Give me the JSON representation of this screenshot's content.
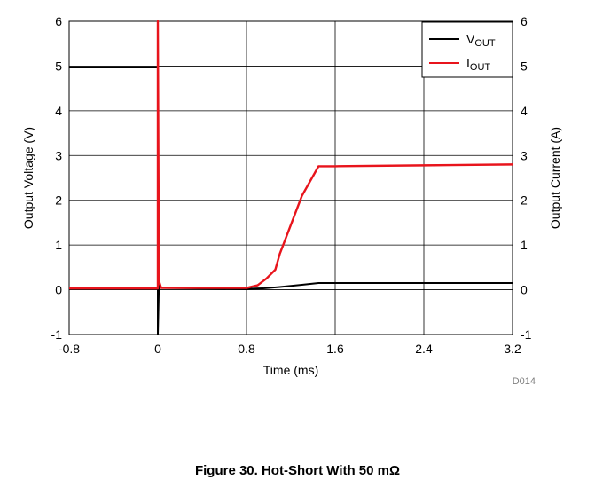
{
  "chart_data": {
    "type": "line",
    "xlabel": "Time (ms)",
    "ylabel": "Output Voltage (V)",
    "y2label": "Output Current (A)",
    "xlim": [
      -0.8,
      3.2
    ],
    "ylim": [
      -1,
      6
    ],
    "y2lim": [
      -1,
      6
    ],
    "x_ticks": [
      "-0.8",
      "0",
      "0.8",
      "1.6",
      "2.4",
      "3.2"
    ],
    "y_ticks": [
      "-1",
      "0",
      "1",
      "2",
      "3",
      "4",
      "5",
      "6"
    ],
    "y2_ticks": [
      "-1",
      "0",
      "1",
      "2",
      "3",
      "4",
      "5",
      "6"
    ],
    "grid": true,
    "legend_position": "top-right",
    "series": [
      {
        "name_main": "V",
        "name_sub": "OUT",
        "color": "#000000",
        "axis": "left",
        "x": [
          -0.8,
          -0.001,
          0.0,
          0.0,
          0.01,
          0.03,
          0.8,
          0.95,
          1.1,
          1.3,
          1.45,
          1.6,
          2.4,
          3.2
        ],
        "y": [
          4.97,
          4.97,
          4.97,
          -1.0,
          0.12,
          0.04,
          0.02,
          0.03,
          0.06,
          0.11,
          0.15,
          0.15,
          0.15,
          0.15
        ]
      },
      {
        "name_main": "I",
        "name_sub": "OUT",
        "color": "#e8141c",
        "axis": "right",
        "x": [
          -0.8,
          -0.001,
          0.0,
          0.0,
          0.01,
          0.03,
          0.8,
          0.9,
          0.98,
          1.06,
          1.1,
          1.2,
          1.3,
          1.45,
          1.6,
          2.4,
          3.2
        ],
        "y": [
          0.03,
          0.03,
          0.03,
          6.0,
          0.2,
          0.04,
          0.04,
          0.1,
          0.25,
          0.45,
          0.8,
          1.45,
          2.1,
          2.76,
          2.76,
          2.78,
          2.8
        ]
      }
    ],
    "figure_id": "D014"
  },
  "caption": "Figure 30. Hot-Short With 50 mΩ"
}
